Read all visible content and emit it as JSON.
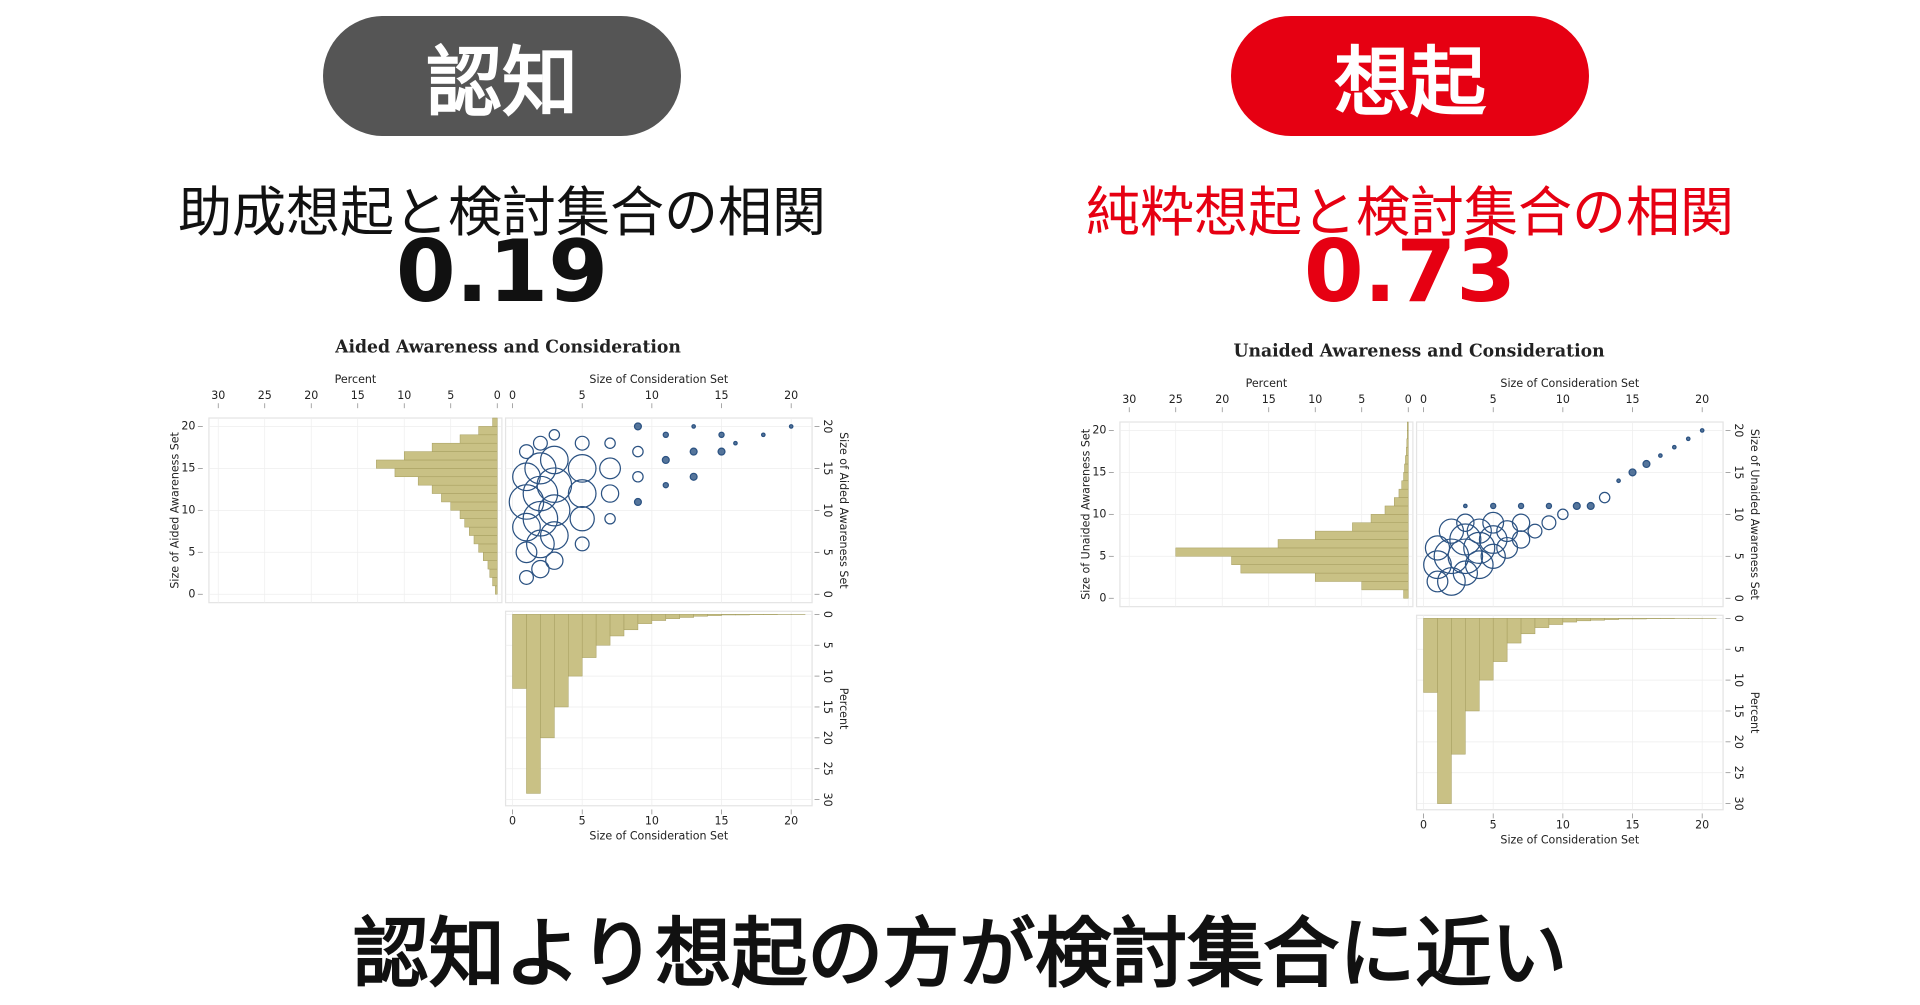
{
  "panels": [
    {
      "badge": "認知",
      "subtitle": "助成想起と検討集合の相関",
      "correlation": 0.19
    },
    {
      "badge": "想起",
      "subtitle": "純粋想起と検討集合の相関",
      "correlation": 0.73
    }
  ],
  "conclusion": "認知より想起の方が検討集合に近い",
  "chart_data": [
    {
      "type": "bubble",
      "title": "Aided Awareness and Consideration",
      "top_left_label": "Percent",
      "top_right_label": "Size of Consideration Set",
      "ylabel": "Size of Aided Awareness Set",
      "bottom_ylabel": "Percent",
      "xlabel": "Size of Consideration Set",
      "xlim": [
        -0.5,
        21.5
      ],
      "xticks": [
        0,
        5,
        10,
        15,
        20
      ],
      "ylim": [
        -1,
        21
      ],
      "yticks": [
        0,
        5,
        10,
        15,
        20
      ],
      "pct_lim": [
        -0.5,
        31
      ],
      "pct_ticks": [
        0,
        5,
        10,
        15,
        20,
        25,
        30
      ],
      "grid": true,
      "awareness_hist": {
        "bins": [
          0,
          1,
          2,
          3,
          4,
          5,
          6,
          7,
          8,
          9,
          10,
          11,
          12,
          13,
          14,
          15,
          16,
          17,
          18,
          19,
          20,
          21
        ],
        "values": [
          0.2,
          0.5,
          0.8,
          1,
          1.5,
          2,
          2.5,
          3,
          3.5,
          4,
          5,
          6,
          7,
          8.5,
          11,
          13,
          10,
          7,
          4,
          2,
          0.5
        ],
        "color": "#c9c185"
      },
      "consideration_hist": {
        "bins": [
          0,
          1,
          2,
          3,
          4,
          5,
          6,
          7,
          8,
          9,
          10,
          11,
          12,
          13,
          14,
          15,
          16,
          17,
          18,
          19,
          20,
          21
        ],
        "values": [
          12,
          29,
          20,
          15,
          10,
          7,
          5,
          3.5,
          2.5,
          1.5,
          1,
          0.7,
          0.5,
          0.3,
          0.2,
          0.1,
          0.1,
          0.05,
          0.05,
          0.02,
          0.02
        ],
        "color": "#c9c185"
      },
      "points": {
        "color": "#2b5282",
        "x": [
          1,
          1,
          1,
          1,
          1,
          1,
          2,
          2,
          2,
          2,
          2,
          2,
          3,
          3,
          3,
          3,
          3,
          3,
          5,
          5,
          5,
          5,
          5,
          7,
          7,
          7,
          7,
          9,
          9,
          9,
          9,
          11,
          11,
          11,
          13,
          13,
          13,
          15,
          15,
          16,
          18,
          20
        ],
        "y": [
          2,
          5,
          8,
          11,
          14,
          17,
          3,
          6,
          9,
          12,
          15,
          18,
          4,
          7,
          10,
          13,
          16,
          19,
          6,
          9,
          12,
          15,
          18,
          9,
          12,
          15,
          18,
          11,
          14,
          17,
          20,
          13,
          16,
          19,
          14,
          17,
          20,
          17,
          19,
          18,
          19,
          20
        ],
        "size": [
          4,
          6,
          8,
          10,
          8,
          4,
          5,
          8,
          10,
          10,
          9,
          4,
          5,
          8,
          9,
          10,
          8,
          3,
          4,
          7,
          8,
          8,
          4,
          3,
          5,
          6,
          3,
          2,
          3,
          3,
          2,
          1.5,
          2,
          1.5,
          2,
          2,
          1,
          2,
          1.5,
          1,
          1,
          1
        ]
      }
    },
    {
      "type": "bubble",
      "title": "Unaided Awareness and Consideration",
      "top_left_label": "Percent",
      "top_right_label": "Size of Consideration Set",
      "ylabel": "Size of Unaided Awareness Set",
      "bottom_ylabel": "Percent",
      "xlabel": "Size of Consideration Set",
      "xlim": [
        -0.5,
        21.5
      ],
      "xticks": [
        0,
        5,
        10,
        15,
        20
      ],
      "ylim": [
        -1,
        21
      ],
      "yticks": [
        0,
        5,
        10,
        15,
        20
      ],
      "pct_lim": [
        -0.5,
        31
      ],
      "pct_ticks": [
        0,
        5,
        10,
        15,
        20,
        25,
        30
      ],
      "grid": true,
      "awareness_hist": {
        "bins": [
          0,
          1,
          2,
          3,
          4,
          5,
          6,
          7,
          8,
          9,
          10,
          11,
          12,
          13,
          14,
          15,
          16,
          17,
          18,
          19,
          20,
          21
        ],
        "values": [
          0.5,
          5,
          10,
          18,
          19,
          25,
          14,
          10,
          6,
          4,
          2.5,
          1.5,
          1,
          0.7,
          0.5,
          0.4,
          0.3,
          0.2,
          0.15,
          0.1,
          0.1
        ],
        "color": "#c9c185"
      },
      "consideration_hist": {
        "bins": [
          0,
          1,
          2,
          3,
          4,
          5,
          6,
          7,
          8,
          9,
          10,
          11,
          12,
          13,
          14,
          15,
          16,
          17,
          18,
          19,
          20,
          21
        ],
        "values": [
          12,
          30,
          22,
          15,
          10,
          7,
          4,
          2.5,
          1.5,
          1,
          0.6,
          0.4,
          0.3,
          0.2,
          0.1,
          0.1,
          0.05,
          0.05,
          0.02,
          0.02,
          0.01
        ],
        "color": "#c9c185"
      },
      "points": {
        "color": "#2b5282",
        "x": [
          1,
          1,
          1,
          2,
          2,
          2,
          3,
          3,
          3,
          3,
          4,
          4,
          4,
          5,
          5,
          5,
          6,
          6,
          7,
          7,
          8,
          9,
          10,
          11,
          12,
          13,
          14,
          15,
          16,
          17,
          18,
          19,
          20,
          3,
          5,
          7,
          9
        ],
        "y": [
          2,
          4,
          6,
          2,
          5,
          8,
          3,
          5,
          7,
          9,
          4,
          6,
          8,
          5,
          7,
          9,
          6,
          8,
          7,
          9,
          8,
          9,
          10,
          11,
          11,
          12,
          14,
          15,
          16,
          17,
          18,
          19,
          20,
          11,
          11,
          11,
          11
        ],
        "size": [
          6,
          8,
          7,
          8,
          10,
          7,
          7,
          10,
          9,
          5,
          8,
          9,
          7,
          7,
          8,
          6,
          6,
          6,
          5,
          5,
          4,
          4,
          3,
          2,
          2,
          3,
          1,
          2,
          2,
          1,
          1,
          1,
          1,
          1,
          1.5,
          1.5,
          1.5
        ]
      }
    }
  ]
}
